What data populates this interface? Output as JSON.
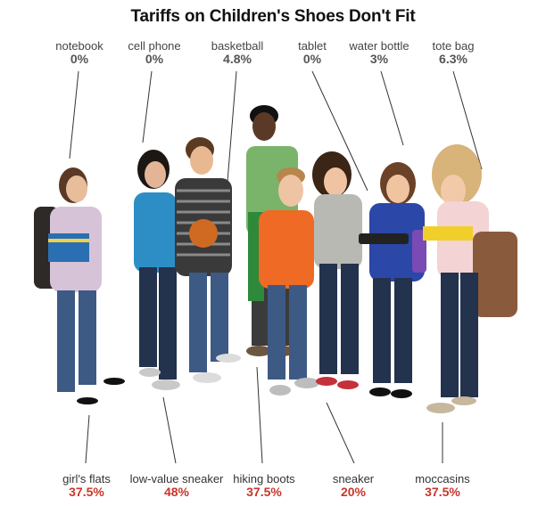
{
  "title": "Tariffs on Children's Shoes Don't Fit",
  "top_labels": [
    {
      "name": "notebook",
      "pct": "0%"
    },
    {
      "name": "cell phone",
      "pct": "0%"
    },
    {
      "name": "basketball",
      "pct": "4.8%"
    },
    {
      "name": "tablet",
      "pct": "0%"
    },
    {
      "name": "water bottle",
      "pct": "3%"
    },
    {
      "name": "tote bag",
      "pct": "6.3%"
    }
  ],
  "bottom_labels": [
    {
      "name": "girl's flats",
      "pct": "37.5%"
    },
    {
      "name": "low-value sneaker",
      "pct": "48%"
    },
    {
      "name": "hiking boots",
      "pct": "37.5%"
    },
    {
      "name": "sneaker",
      "pct": "20%"
    },
    {
      "name": "moccasins",
      "pct": "37.5%"
    }
  ],
  "colors": {
    "top_pct": "#555555",
    "bottom_pct": "#c8352b",
    "leader": "#333333"
  }
}
